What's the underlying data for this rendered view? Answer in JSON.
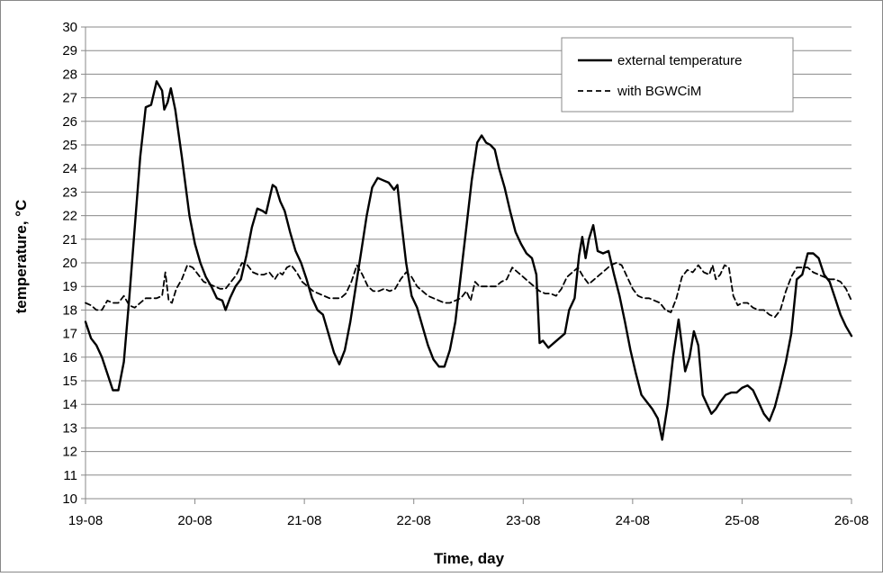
{
  "chart_data": {
    "type": "line",
    "title": "",
    "xlabel": "Time,  day",
    "ylabel": "temperature, °C",
    "xlim": [
      0,
      7
    ],
    "ylim": [
      10,
      30
    ],
    "x_ticks": [
      {
        "pos": 0,
        "label": "19-08"
      },
      {
        "pos": 1,
        "label": "20-08"
      },
      {
        "pos": 2,
        "label": "21-08"
      },
      {
        "pos": 3,
        "label": "22-08"
      },
      {
        "pos": 4,
        "label": "23-08"
      },
      {
        "pos": 5,
        "label": "24-08"
      },
      {
        "pos": 6,
        "label": "25-08"
      },
      {
        "pos": 7,
        "label": "26-08"
      }
    ],
    "y_ticks": [
      "10",
      "11",
      "12",
      "13",
      "14",
      "15",
      "16",
      "17",
      "18",
      "19",
      "20",
      "21",
      "22",
      "23",
      "24",
      "25",
      "26",
      "27",
      "28",
      "29",
      "30"
    ],
    "grid": "horizontal",
    "legend_position": "top-right",
    "colors": {
      "line": "#000000",
      "grid": "#888888",
      "frame": "#888888"
    },
    "series": [
      {
        "name": "external temperature",
        "style": "solid",
        "points": [
          [
            0.0,
            17.5
          ],
          [
            0.05,
            16.8
          ],
          [
            0.1,
            16.5
          ],
          [
            0.15,
            16.0
          ],
          [
            0.2,
            15.3
          ],
          [
            0.25,
            14.6
          ],
          [
            0.3,
            14.6
          ],
          [
            0.35,
            15.8
          ],
          [
            0.4,
            18.5
          ],
          [
            0.45,
            21.5
          ],
          [
            0.5,
            24.5
          ],
          [
            0.55,
            26.6
          ],
          [
            0.6,
            26.7
          ],
          [
            0.65,
            27.7
          ],
          [
            0.7,
            27.3
          ],
          [
            0.72,
            26.5
          ],
          [
            0.75,
            26.8
          ],
          [
            0.78,
            27.4
          ],
          [
            0.82,
            26.5
          ],
          [
            0.88,
            24.5
          ],
          [
            0.95,
            22.0
          ],
          [
            1.0,
            20.8
          ],
          [
            1.05,
            20.0
          ],
          [
            1.1,
            19.4
          ],
          [
            1.15,
            19.0
          ],
          [
            1.2,
            18.5
          ],
          [
            1.25,
            18.4
          ],
          [
            1.28,
            18.0
          ],
          [
            1.32,
            18.5
          ],
          [
            1.37,
            19.0
          ],
          [
            1.42,
            19.3
          ],
          [
            1.47,
            20.3
          ],
          [
            1.52,
            21.5
          ],
          [
            1.57,
            22.3
          ],
          [
            1.62,
            22.2
          ],
          [
            1.65,
            22.1
          ],
          [
            1.68,
            22.7
          ],
          [
            1.71,
            23.3
          ],
          [
            1.74,
            23.2
          ],
          [
            1.78,
            22.6
          ],
          [
            1.82,
            22.2
          ],
          [
            1.87,
            21.3
          ],
          [
            1.92,
            20.5
          ],
          [
            1.97,
            20.0
          ],
          [
            2.02,
            19.3
          ],
          [
            2.07,
            18.5
          ],
          [
            2.12,
            18.0
          ],
          [
            2.17,
            17.8
          ],
          [
            2.22,
            17.0
          ],
          [
            2.27,
            16.2
          ],
          [
            2.32,
            15.7
          ],
          [
            2.37,
            16.3
          ],
          [
            2.42,
            17.5
          ],
          [
            2.47,
            19.0
          ],
          [
            2.52,
            20.5
          ],
          [
            2.57,
            22.0
          ],
          [
            2.62,
            23.2
          ],
          [
            2.67,
            23.6
          ],
          [
            2.72,
            23.5
          ],
          [
            2.77,
            23.4
          ],
          [
            2.82,
            23.1
          ],
          [
            2.85,
            23.3
          ],
          [
            2.88,
            22.0
          ],
          [
            2.93,
            20.0
          ],
          [
            2.98,
            18.6
          ],
          [
            3.03,
            18.1
          ],
          [
            3.08,
            17.3
          ],
          [
            3.13,
            16.5
          ],
          [
            3.18,
            15.9
          ],
          [
            3.23,
            15.6
          ],
          [
            3.28,
            15.6
          ],
          [
            3.33,
            16.3
          ],
          [
            3.38,
            17.5
          ],
          [
            3.43,
            19.5
          ],
          [
            3.48,
            21.5
          ],
          [
            3.53,
            23.5
          ],
          [
            3.58,
            25.1
          ],
          [
            3.62,
            25.4
          ],
          [
            3.66,
            25.1
          ],
          [
            3.7,
            25.0
          ],
          [
            3.74,
            24.8
          ],
          [
            3.78,
            24.0
          ],
          [
            3.83,
            23.2
          ],
          [
            3.88,
            22.2
          ],
          [
            3.93,
            21.3
          ],
          [
            3.98,
            20.8
          ],
          [
            4.03,
            20.4
          ],
          [
            4.08,
            20.2
          ],
          [
            4.12,
            19.5
          ],
          [
            4.15,
            16.6
          ],
          [
            4.18,
            16.7
          ],
          [
            4.23,
            16.4
          ],
          [
            4.28,
            16.6
          ],
          [
            4.33,
            16.8
          ],
          [
            4.38,
            17.0
          ],
          [
            4.42,
            18.0
          ],
          [
            4.47,
            18.5
          ],
          [
            4.51,
            20.3
          ],
          [
            4.54,
            21.1
          ],
          [
            4.57,
            20.2
          ],
          [
            4.6,
            21.0
          ],
          [
            4.64,
            21.6
          ],
          [
            4.68,
            20.5
          ],
          [
            4.73,
            20.4
          ],
          [
            4.78,
            20.5
          ],
          [
            4.83,
            19.5
          ],
          [
            4.88,
            18.6
          ],
          [
            4.93,
            17.5
          ],
          [
            4.98,
            16.3
          ],
          [
            5.03,
            15.3
          ],
          [
            5.08,
            14.4
          ],
          [
            5.13,
            14.1
          ],
          [
            5.18,
            13.8
          ],
          [
            5.23,
            13.4
          ],
          [
            5.27,
            12.5
          ],
          [
            5.32,
            14.0
          ],
          [
            5.37,
            16.0
          ],
          [
            5.42,
            17.6
          ],
          [
            5.45,
            16.5
          ],
          [
            5.48,
            15.4
          ],
          [
            5.52,
            16.0
          ],
          [
            5.56,
            17.1
          ],
          [
            5.6,
            16.5
          ],
          [
            5.64,
            14.4
          ],
          [
            5.68,
            14.0
          ],
          [
            5.72,
            13.6
          ],
          [
            5.76,
            13.8
          ],
          [
            5.8,
            14.1
          ],
          [
            5.85,
            14.4
          ],
          [
            5.9,
            14.5
          ],
          [
            5.95,
            14.5
          ],
          [
            6.0,
            14.7
          ],
          [
            6.05,
            14.8
          ],
          [
            6.1,
            14.6
          ],
          [
            6.15,
            14.1
          ],
          [
            6.2,
            13.6
          ],
          [
            6.25,
            13.3
          ],
          [
            6.3,
            13.9
          ],
          [
            6.35,
            14.8
          ],
          [
            6.4,
            15.8
          ],
          [
            6.45,
            17.0
          ],
          [
            6.5,
            19.3
          ],
          [
            6.55,
            19.5
          ],
          [
            6.6,
            20.4
          ],
          [
            6.65,
            20.4
          ],
          [
            6.7,
            20.2
          ],
          [
            6.75,
            19.5
          ],
          [
            6.8,
            19.2
          ],
          [
            6.85,
            18.5
          ],
          [
            6.9,
            17.8
          ],
          [
            6.95,
            17.3
          ],
          [
            7.0,
            16.9
          ]
        ]
      },
      {
        "name": "with BGWCiM",
        "style": "dashed",
        "points": [
          [
            0.0,
            18.3
          ],
          [
            0.05,
            18.2
          ],
          [
            0.1,
            18.0
          ],
          [
            0.15,
            18.0
          ],
          [
            0.2,
            18.4
          ],
          [
            0.25,
            18.3
          ],
          [
            0.3,
            18.3
          ],
          [
            0.35,
            18.6
          ],
          [
            0.4,
            18.2
          ],
          [
            0.45,
            18.1
          ],
          [
            0.5,
            18.3
          ],
          [
            0.55,
            18.5
          ],
          [
            0.6,
            18.5
          ],
          [
            0.65,
            18.5
          ],
          [
            0.7,
            18.6
          ],
          [
            0.73,
            19.6
          ],
          [
            0.76,
            18.4
          ],
          [
            0.79,
            18.3
          ],
          [
            0.83,
            18.9
          ],
          [
            0.88,
            19.3
          ],
          [
            0.93,
            19.9
          ],
          [
            0.98,
            19.8
          ],
          [
            1.03,
            19.5
          ],
          [
            1.08,
            19.2
          ],
          [
            1.13,
            19.1
          ],
          [
            1.18,
            19.0
          ],
          [
            1.23,
            18.9
          ],
          [
            1.28,
            18.9
          ],
          [
            1.33,
            19.2
          ],
          [
            1.38,
            19.5
          ],
          [
            1.43,
            20.0
          ],
          [
            1.48,
            19.9
          ],
          [
            1.53,
            19.6
          ],
          [
            1.58,
            19.5
          ],
          [
            1.63,
            19.5
          ],
          [
            1.68,
            19.6
          ],
          [
            1.73,
            19.3
          ],
          [
            1.77,
            19.6
          ],
          [
            1.8,
            19.5
          ],
          [
            1.84,
            19.8
          ],
          [
            1.88,
            19.9
          ],
          [
            1.93,
            19.6
          ],
          [
            1.98,
            19.2
          ],
          [
            2.03,
            19.0
          ],
          [
            2.08,
            18.8
          ],
          [
            2.13,
            18.7
          ],
          [
            2.18,
            18.6
          ],
          [
            2.23,
            18.5
          ],
          [
            2.28,
            18.5
          ],
          [
            2.33,
            18.5
          ],
          [
            2.38,
            18.7
          ],
          [
            2.43,
            19.2
          ],
          [
            2.48,
            19.9
          ],
          [
            2.53,
            19.5
          ],
          [
            2.58,
            19.0
          ],
          [
            2.63,
            18.8
          ],
          [
            2.68,
            18.8
          ],
          [
            2.73,
            18.9
          ],
          [
            2.78,
            18.8
          ],
          [
            2.83,
            18.9
          ],
          [
            2.88,
            19.3
          ],
          [
            2.93,
            19.6
          ],
          [
            2.98,
            19.4
          ],
          [
            3.03,
            19.0
          ],
          [
            3.08,
            18.8
          ],
          [
            3.13,
            18.6
          ],
          [
            3.18,
            18.5
          ],
          [
            3.23,
            18.4
          ],
          [
            3.28,
            18.3
          ],
          [
            3.33,
            18.3
          ],
          [
            3.38,
            18.4
          ],
          [
            3.43,
            18.5
          ],
          [
            3.48,
            18.8
          ],
          [
            3.52,
            18.4
          ],
          [
            3.56,
            19.2
          ],
          [
            3.6,
            19.0
          ],
          [
            3.65,
            19.0
          ],
          [
            3.7,
            19.0
          ],
          [
            3.75,
            19.0
          ],
          [
            3.8,
            19.2
          ],
          [
            3.85,
            19.3
          ],
          [
            3.9,
            19.8
          ],
          [
            3.95,
            19.6
          ],
          [
            4.0,
            19.4
          ],
          [
            4.05,
            19.2
          ],
          [
            4.1,
            19.0
          ],
          [
            4.15,
            18.8
          ],
          [
            4.2,
            18.7
          ],
          [
            4.25,
            18.7
          ],
          [
            4.3,
            18.6
          ],
          [
            4.35,
            18.9
          ],
          [
            4.4,
            19.4
          ],
          [
            4.45,
            19.6
          ],
          [
            4.5,
            19.8
          ],
          [
            4.55,
            19.4
          ],
          [
            4.6,
            19.1
          ],
          [
            4.65,
            19.3
          ],
          [
            4.7,
            19.5
          ],
          [
            4.75,
            19.7
          ],
          [
            4.8,
            19.9
          ],
          [
            4.85,
            20.0
          ],
          [
            4.9,
            19.9
          ],
          [
            4.95,
            19.4
          ],
          [
            5.0,
            18.9
          ],
          [
            5.05,
            18.6
          ],
          [
            5.1,
            18.5
          ],
          [
            5.15,
            18.5
          ],
          [
            5.2,
            18.4
          ],
          [
            5.25,
            18.3
          ],
          [
            5.3,
            18.0
          ],
          [
            5.35,
            17.9
          ],
          [
            5.4,
            18.5
          ],
          [
            5.45,
            19.4
          ],
          [
            5.5,
            19.7
          ],
          [
            5.55,
            19.6
          ],
          [
            5.6,
            19.9
          ],
          [
            5.65,
            19.6
          ],
          [
            5.7,
            19.5
          ],
          [
            5.73,
            19.9
          ],
          [
            5.76,
            19.3
          ],
          [
            5.8,
            19.5
          ],
          [
            5.84,
            19.9
          ],
          [
            5.88,
            19.8
          ],
          [
            5.92,
            18.6
          ],
          [
            5.96,
            18.2
          ],
          [
            6.0,
            18.3
          ],
          [
            6.05,
            18.3
          ],
          [
            6.1,
            18.1
          ],
          [
            6.15,
            18.0
          ],
          [
            6.2,
            18.0
          ],
          [
            6.25,
            17.8
          ],
          [
            6.3,
            17.7
          ],
          [
            6.35,
            18.0
          ],
          [
            6.4,
            18.8
          ],
          [
            6.45,
            19.4
          ],
          [
            6.5,
            19.8
          ],
          [
            6.55,
            19.8
          ],
          [
            6.6,
            19.8
          ],
          [
            6.65,
            19.6
          ],
          [
            6.7,
            19.5
          ],
          [
            6.75,
            19.4
          ],
          [
            6.8,
            19.3
          ],
          [
            6.85,
            19.3
          ],
          [
            6.9,
            19.2
          ],
          [
            6.95,
            18.9
          ],
          [
            7.0,
            18.4
          ]
        ]
      }
    ]
  }
}
